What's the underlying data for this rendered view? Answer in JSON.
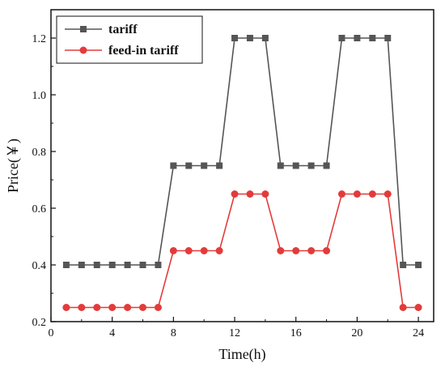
{
  "chart_data": {
    "type": "line",
    "xlabel": "Time(h)",
    "ylabel": "Price(￥)",
    "xlim": [
      0,
      25
    ],
    "ylim": [
      0.2,
      1.3
    ],
    "xticks": [
      0,
      4,
      8,
      12,
      16,
      20,
      24
    ],
    "yticks": [
      0.2,
      0.4,
      0.6,
      0.8,
      1.0,
      1.2
    ],
    "xtick_labels": [
      "0",
      "4",
      "8",
      "12",
      "16",
      "20",
      "24"
    ],
    "ytick_labels": [
      "0.2",
      "0.4",
      "0.6",
      "0.8",
      "1.0",
      "1.2"
    ],
    "legend_position": "top-left",
    "grid": false,
    "x": [
      1,
      2,
      3,
      4,
      5,
      6,
      7,
      8,
      9,
      10,
      11,
      12,
      13,
      14,
      15,
      16,
      17,
      18,
      19,
      20,
      21,
      22,
      23,
      24
    ],
    "series": [
      {
        "name": "tariff",
        "color": "#555555",
        "marker": "square",
        "values": [
          0.4,
          0.4,
          0.4,
          0.4,
          0.4,
          0.4,
          0.4,
          0.75,
          0.75,
          0.75,
          0.75,
          1.2,
          1.2,
          1.2,
          0.75,
          0.75,
          0.75,
          0.75,
          1.2,
          1.2,
          1.2,
          1.2,
          0.4,
          0.4
        ]
      },
      {
        "name": "feed-in tariff",
        "color": "#e33b3b",
        "marker": "circle",
        "values": [
          0.25,
          0.25,
          0.25,
          0.25,
          0.25,
          0.25,
          0.25,
          0.45,
          0.45,
          0.45,
          0.45,
          0.65,
          0.65,
          0.65,
          0.45,
          0.45,
          0.45,
          0.45,
          0.65,
          0.65,
          0.65,
          0.65,
          0.25,
          0.25
        ]
      }
    ]
  }
}
